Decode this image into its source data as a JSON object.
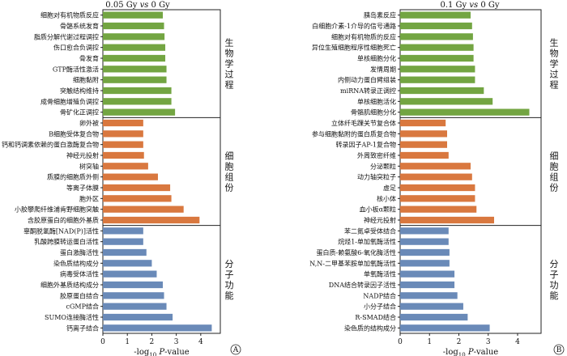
{
  "chart_data": [
    {
      "type": "bar",
      "orientation": "horizontal",
      "title": "0.05 Gy vs 0 Gy",
      "xlabel": "-log10 P-value",
      "xlim": [
        0,
        4.8
      ],
      "xticks": [
        0,
        1,
        2,
        3,
        4
      ],
      "panel_mark": "A",
      "groups": [
        {
          "name": "生物学过程",
          "color": "#73a542",
          "categories": [
            "细胞对有机物质反应",
            "骨骼系统发育",
            "脂质分解代谢过程调控",
            "伤口愈合负调控",
            "骨发育",
            "GTP酶活性激活",
            "细胞黏附",
            "突触结构维持",
            "成骨细胞增殖负调控",
            "骨矿化正调控"
          ],
          "values": [
            2.45,
            2.5,
            2.52,
            2.55,
            2.55,
            2.6,
            2.6,
            2.8,
            2.8,
            2.95
          ]
        },
        {
          "name": "细胞组份",
          "color": "#d9783f",
          "categories": [
            "卵外被",
            "B细胞受体复合物",
            "钙和钙调素依赖的蛋白激酶复合物",
            "神经元投射",
            "树突轴",
            "质膜的细胞质外侧",
            "等离子体膜",
            "胞外区",
            "小胶攀爬纤维浦肯野细胞突触",
            "含胶原蛋白的细胞外基质"
          ],
          "values": [
            1.65,
            1.65,
            1.65,
            1.68,
            1.85,
            2.25,
            2.75,
            2.8,
            3.3,
            3.95
          ]
        },
        {
          "name": "分子功能",
          "color": "#6a8ab8",
          "categories": [
            "辜酮脱氢酶[NAD(P)]活性",
            "乳酸跨膜转运蛋白活性",
            "蛋白激酶活性",
            "染色质结构成分",
            "病毒受体活性",
            "细胞外基质结构成分",
            "胶原蛋白结合",
            "cGMP结合",
            "SUMO连接酶活性",
            "钙离子结合"
          ],
          "values": [
            1.65,
            1.65,
            1.78,
            2.0,
            2.2,
            2.45,
            2.5,
            2.6,
            2.85,
            4.45
          ]
        }
      ]
    },
    {
      "type": "bar",
      "orientation": "horizontal",
      "title": "0.1 Gy vs 0 Gy",
      "xlabel": "-log10 P-value",
      "xlim": [
        0,
        4.8
      ],
      "xticks": [
        0,
        1,
        2,
        3,
        4
      ],
      "panel_mark": "B",
      "groups": [
        {
          "name": "生物学过程",
          "color": "#73a542",
          "categories": [
            "胰岛素反应",
            "白细胞介素-1介导的信号通路",
            "细胞对有机物质的反应",
            "异位生殖细胞程序性细胞死亡",
            "单核细胞分化",
            "发情周期",
            "内侧动力蛋白臂组装",
            "miRNA转录正调控",
            "单核细胞活化",
            "骨骼肌细胞分化"
          ],
          "values": [
            2.4,
            2.45,
            2.48,
            2.5,
            2.5,
            2.55,
            2.55,
            2.85,
            3.15,
            4.4
          ]
        },
        {
          "name": "细胞组份",
          "color": "#d9783f",
          "categories": [
            "立体纤毛踝关节复合体",
            "参与细胞黏附的蛋白质复合物",
            "转录因子AP-1复合物",
            "外周致密纤维",
            "分泌颗粒",
            "动力轴突粒子",
            "虚足",
            "核小体",
            "血小板α颗粒",
            "神经元投射"
          ],
          "values": [
            1.55,
            1.6,
            1.6,
            1.65,
            2.4,
            2.45,
            2.55,
            2.55,
            2.6,
            3.2
          ]
        },
        {
          "name": "分子功能",
          "color": "#6a8ab8",
          "categories": [
            "苯二氮卓受体结合",
            "烷烃1-单加氧酶活性",
            "蛋白质-赖氨酸6-氧化酶活性",
            "N,N-二甲基苯胺单加氧酶活性",
            "单氧酶活性",
            "DNA结合转录因子活性",
            "NADP结合",
            "小分子结合",
            "R-SMAD结合",
            "染色质的结构成分"
          ],
          "values": [
            1.65,
            1.65,
            1.68,
            1.68,
            1.85,
            1.85,
            1.95,
            2.15,
            2.3,
            3.05
          ]
        }
      ]
    }
  ]
}
